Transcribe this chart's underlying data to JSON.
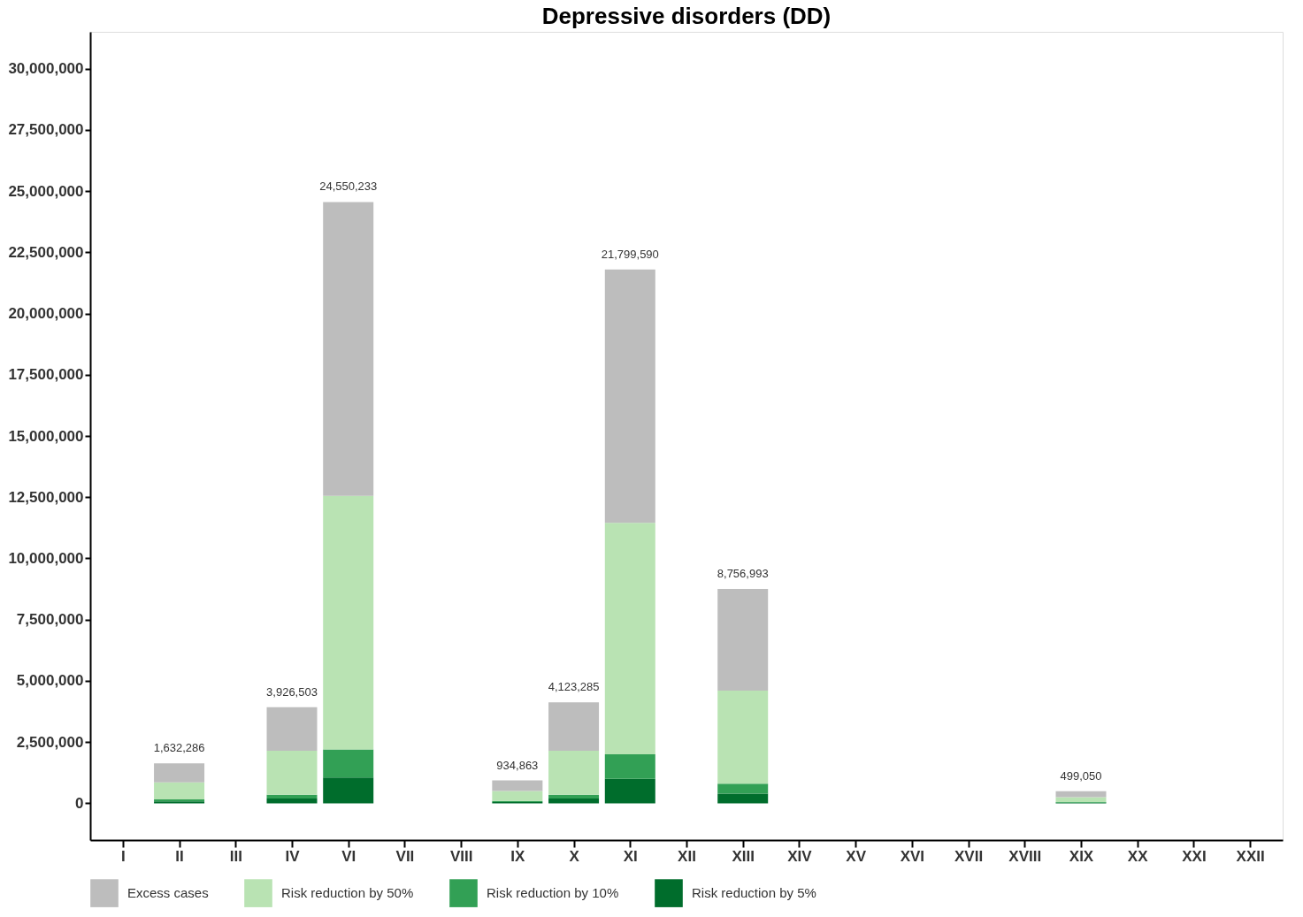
{
  "chart_data": {
    "type": "bar",
    "title": "Depressive disorders (DD)",
    "stacked": true,
    "legend": "bottom",
    "categories": [
      "I",
      "II",
      "III",
      "IV",
      "VI",
      "VII",
      "VIII",
      "IX",
      "X",
      "XI",
      "XII",
      "XIII",
      "XIV",
      "XV",
      "XVI",
      "XVII",
      "XVIII",
      "XIX",
      "XX",
      "XXI",
      "XXII"
    ],
    "series": [
      {
        "name": "Risk reduction by 5%",
        "color": "#006d2c",
        "values": [
          null,
          80000,
          null,
          200000,
          1050000,
          null,
          null,
          50000,
          200000,
          1000000,
          null,
          400000,
          null,
          null,
          null,
          null,
          null,
          25000,
          null,
          null,
          null
        ]
      },
      {
        "name": "Risk reduction by 10%",
        "color": "#32a055",
        "values": [
          null,
          80000,
          null,
          150000,
          1150000,
          null,
          null,
          50000,
          150000,
          1000000,
          null,
          400000,
          null,
          null,
          null,
          null,
          null,
          25000,
          null,
          null,
          null
        ]
      },
      {
        "name": "Risk reduction by 50%",
        "color": "#b9e3b3",
        "values": [
          null,
          700000,
          null,
          1800000,
          10350000,
          null,
          null,
          400000,
          1800000,
          9450000,
          null,
          3800000,
          null,
          null,
          null,
          null,
          null,
          200000,
          null,
          null,
          null
        ]
      },
      {
        "name": "Excess cases",
        "color": "#bdbdbd",
        "values": [
          null,
          772286,
          null,
          1776503,
          12000233,
          null,
          null,
          434863,
          1973285,
          10349590,
          null,
          4156993,
          null,
          null,
          null,
          null,
          null,
          249050,
          null,
          null,
          null
        ]
      }
    ],
    "totals": [
      null,
      "1,632,286",
      null,
      "3,926,503",
      "24,550,233",
      null,
      null,
      "934,863",
      "4,123,285",
      "21,799,590",
      null,
      "8,756,993",
      null,
      null,
      null,
      null,
      null,
      "499,050",
      null,
      null,
      null
    ],
    "ylim": [
      -1500000,
      31500000
    ],
    "yticks": [
      0,
      {
        "value": 2500000,
        "label": "2,500,000"
      },
      {
        "value": 5000000,
        "label": "5,000,000"
      },
      {
        "value": 7500000,
        "label": "7,500,000"
      },
      {
        "value": 10000000,
        "label": "10,000,000"
      },
      {
        "value": 12500000,
        "label": "12,500,000"
      },
      {
        "value": 15000000,
        "label": "15,000,000"
      },
      {
        "value": 17500000,
        "label": "17,500,000"
      },
      {
        "value": 20000000,
        "label": "20,000,000"
      },
      {
        "value": 22500000,
        "label": "22,500,000"
      },
      {
        "value": 25000000,
        "label": "25,000,000"
      },
      {
        "value": 27500000,
        "label": "27,500,000"
      },
      {
        "value": 30000000,
        "label": "30,000,000"
      }
    ],
    "grid": false
  }
}
